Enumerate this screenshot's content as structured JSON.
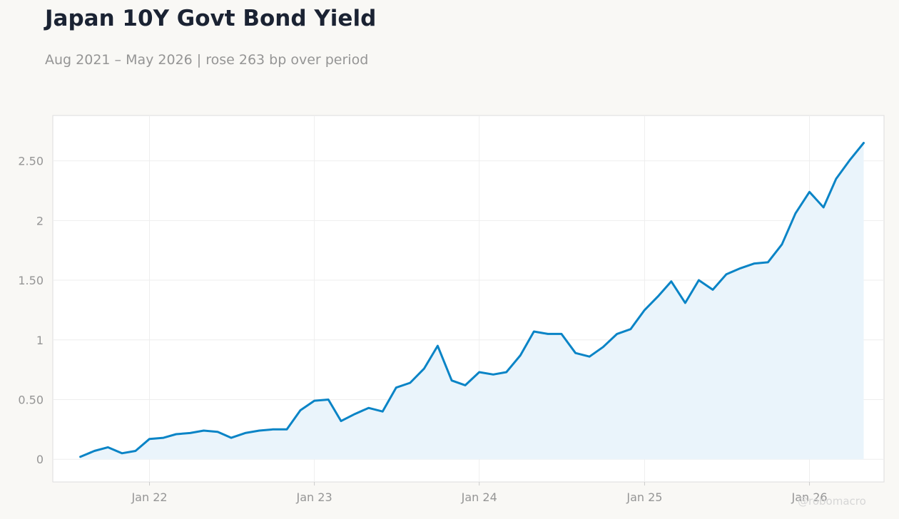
{
  "header": {
    "title": "Japan 10Y Govt Bond Yield",
    "subtitle": "Aug 2021 – May 2026 | rose 263 bp over period"
  },
  "watermark": "@robomacro",
  "colors": {
    "line": "#0a84c6",
    "area": "#eaf4fb",
    "background": "#f9f8f5",
    "plot_bg": "#ffffff",
    "grid": "#eeeeee"
  },
  "chart_data": {
    "type": "area",
    "title": "Japan 10Y Govt Bond Yield",
    "subtitle": "Aug 2021 – May 2026 | rose 263 bp over period",
    "xlabel": "",
    "ylabel": "",
    "grid": true,
    "ylim": [
      -0.19,
      2.88
    ],
    "xlim": [
      "2021-06-01",
      "2026-06-15"
    ],
    "y_ticks": [
      0,
      0.5,
      1,
      1.5,
      2,
      2.5
    ],
    "y_tick_labels": [
      "0",
      "0.50",
      "1",
      "1.50",
      "2",
      "2.50"
    ],
    "x_ticks": [
      "2022-01-01",
      "2023-01-01",
      "2024-01-01",
      "2025-01-01",
      "2026-01-01"
    ],
    "x_tick_labels": [
      "Jan 22",
      "Jan 23",
      "Jan 24",
      "Jan 25",
      "Jan 26"
    ],
    "x": [
      "2021-08-01",
      "2021-09-01",
      "2021-10-01",
      "2021-11-01",
      "2021-12-01",
      "2022-01-01",
      "2022-02-01",
      "2022-03-01",
      "2022-04-01",
      "2022-05-01",
      "2022-06-01",
      "2022-07-01",
      "2022-08-01",
      "2022-09-01",
      "2022-10-01",
      "2022-11-01",
      "2022-12-01",
      "2023-01-01",
      "2023-02-01",
      "2023-03-01",
      "2023-04-01",
      "2023-05-01",
      "2023-06-01",
      "2023-07-01",
      "2023-08-01",
      "2023-09-01",
      "2023-10-01",
      "2023-11-01",
      "2023-12-01",
      "2024-01-01",
      "2024-02-01",
      "2024-03-01",
      "2024-04-01",
      "2024-05-01",
      "2024-06-01",
      "2024-07-01",
      "2024-08-01",
      "2024-09-01",
      "2024-10-01",
      "2024-11-01",
      "2024-12-01",
      "2025-01-01",
      "2025-02-01",
      "2025-03-01",
      "2025-04-01",
      "2025-05-01",
      "2025-06-01",
      "2025-07-01",
      "2025-08-01",
      "2025-09-01",
      "2025-10-01",
      "2025-11-01",
      "2025-12-01",
      "2026-01-01",
      "2026-02-01",
      "2026-03-01",
      "2026-04-01",
      "2026-05-01"
    ],
    "series": [
      {
        "values": [
          0.02,
          0.07,
          0.1,
          0.05,
          0.07,
          0.17,
          0.18,
          0.21,
          0.22,
          0.24,
          0.23,
          0.18,
          0.22,
          0.24,
          0.25,
          0.25,
          0.41,
          0.49,
          0.5,
          0.32,
          0.38,
          0.43,
          0.4,
          0.6,
          0.64,
          0.76,
          0.95,
          0.66,
          0.62,
          0.73,
          0.71,
          0.73,
          0.87,
          1.07,
          1.05,
          1.05,
          0.89,
          0.86,
          0.94,
          1.05,
          1.09,
          1.25,
          1.37,
          1.49,
          1.31,
          1.5,
          1.42,
          1.55,
          1.6,
          1.64,
          1.65,
          1.8,
          2.06,
          2.24,
          2.11,
          2.35,
          2.51,
          2.65
        ]
      }
    ]
  }
}
